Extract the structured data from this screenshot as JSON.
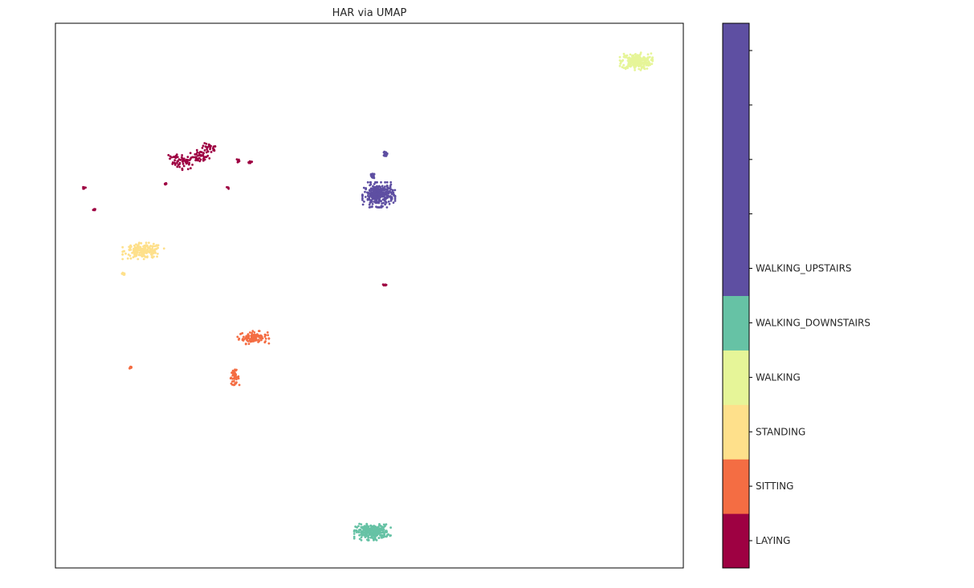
{
  "chart_data": {
    "type": "scatter",
    "title": "HAR via UMAP",
    "xlabel": "",
    "ylabel": "",
    "xlim": [
      0,
      100
    ],
    "ylim": [
      0,
      100
    ],
    "show_axis_ticks": false,
    "grid": false,
    "colorbar": {
      "placement": "right",
      "tick_labels": [
        "LAYING",
        "SITTING",
        "STANDING",
        "WALKING",
        "WALKING_DOWNSTAIRS",
        "WALKING_UPSTAIRS",
        "",
        "",
        "",
        ""
      ],
      "segments": [
        {
          "color": "#9e0142",
          "from": 0,
          "to": 1
        },
        {
          "color": "#f46d43",
          "from": 1,
          "to": 2
        },
        {
          "color": "#fee08b",
          "from": 2,
          "to": 3
        },
        {
          "color": "#e6f598",
          "from": 3,
          "to": 4
        },
        {
          "color": "#66c2a5",
          "from": 4,
          "to": 5
        },
        {
          "color": "#5e4fa2",
          "from": 5,
          "to": 10
        }
      ],
      "range": [
        0,
        10
      ]
    },
    "series": [
      {
        "color": "#9e0142",
        "clusters": [
          [
            20.5,
            74.5,
            2.0,
            1.4
          ],
          [
            23.0,
            75.5,
            1.6,
            1.2
          ],
          [
            24.5,
            77.0,
            1.4,
            1.0
          ],
          [
            18.8,
            75.5,
            0.8,
            0.6
          ],
          [
            29.0,
            74.8,
            0.6,
            0.4
          ],
          [
            31.0,
            74.5,
            0.5,
            0.3
          ],
          [
            4.6,
            69.8,
            0.4,
            0.3
          ],
          [
            6.3,
            65.8,
            0.3,
            0.2
          ],
          [
            52.5,
            52.0,
            0.4,
            0.2
          ],
          [
            17.5,
            70.5,
            0.2,
            0.2
          ],
          [
            27.5,
            69.8,
            0.2,
            0.2
          ]
        ],
        "count": 180
      },
      {
        "color": "#f46d43",
        "clusters": [
          [
            31.5,
            42.3,
            2.5,
            1.2
          ],
          [
            28.5,
            35.0,
            0.8,
            1.4
          ],
          [
            12.0,
            36.8,
            0.2,
            0.2
          ]
        ],
        "count": 160
      },
      {
        "color": "#fee08b",
        "clusters": [
          [
            14.0,
            58.2,
            3.3,
            1.5
          ],
          [
            10.8,
            54.0,
            0.2,
            0.2
          ]
        ],
        "count": 200
      },
      {
        "color": "#e6f598",
        "clusters": [
          [
            92.5,
            93.0,
            2.6,
            1.6
          ]
        ],
        "count": 260
      },
      {
        "color": "#66c2a5",
        "clusters": [
          [
            50.5,
            6.6,
            2.9,
            1.5
          ]
        ],
        "count": 280
      },
      {
        "color": "#5e4fa2",
        "clusters": [
          [
            51.5,
            68.5,
            2.6,
            2.3
          ],
          [
            52.6,
            76.0,
            0.3,
            0.5
          ],
          [
            50.5,
            72.0,
            0.3,
            0.5
          ]
        ],
        "count": 380
      }
    ]
  }
}
